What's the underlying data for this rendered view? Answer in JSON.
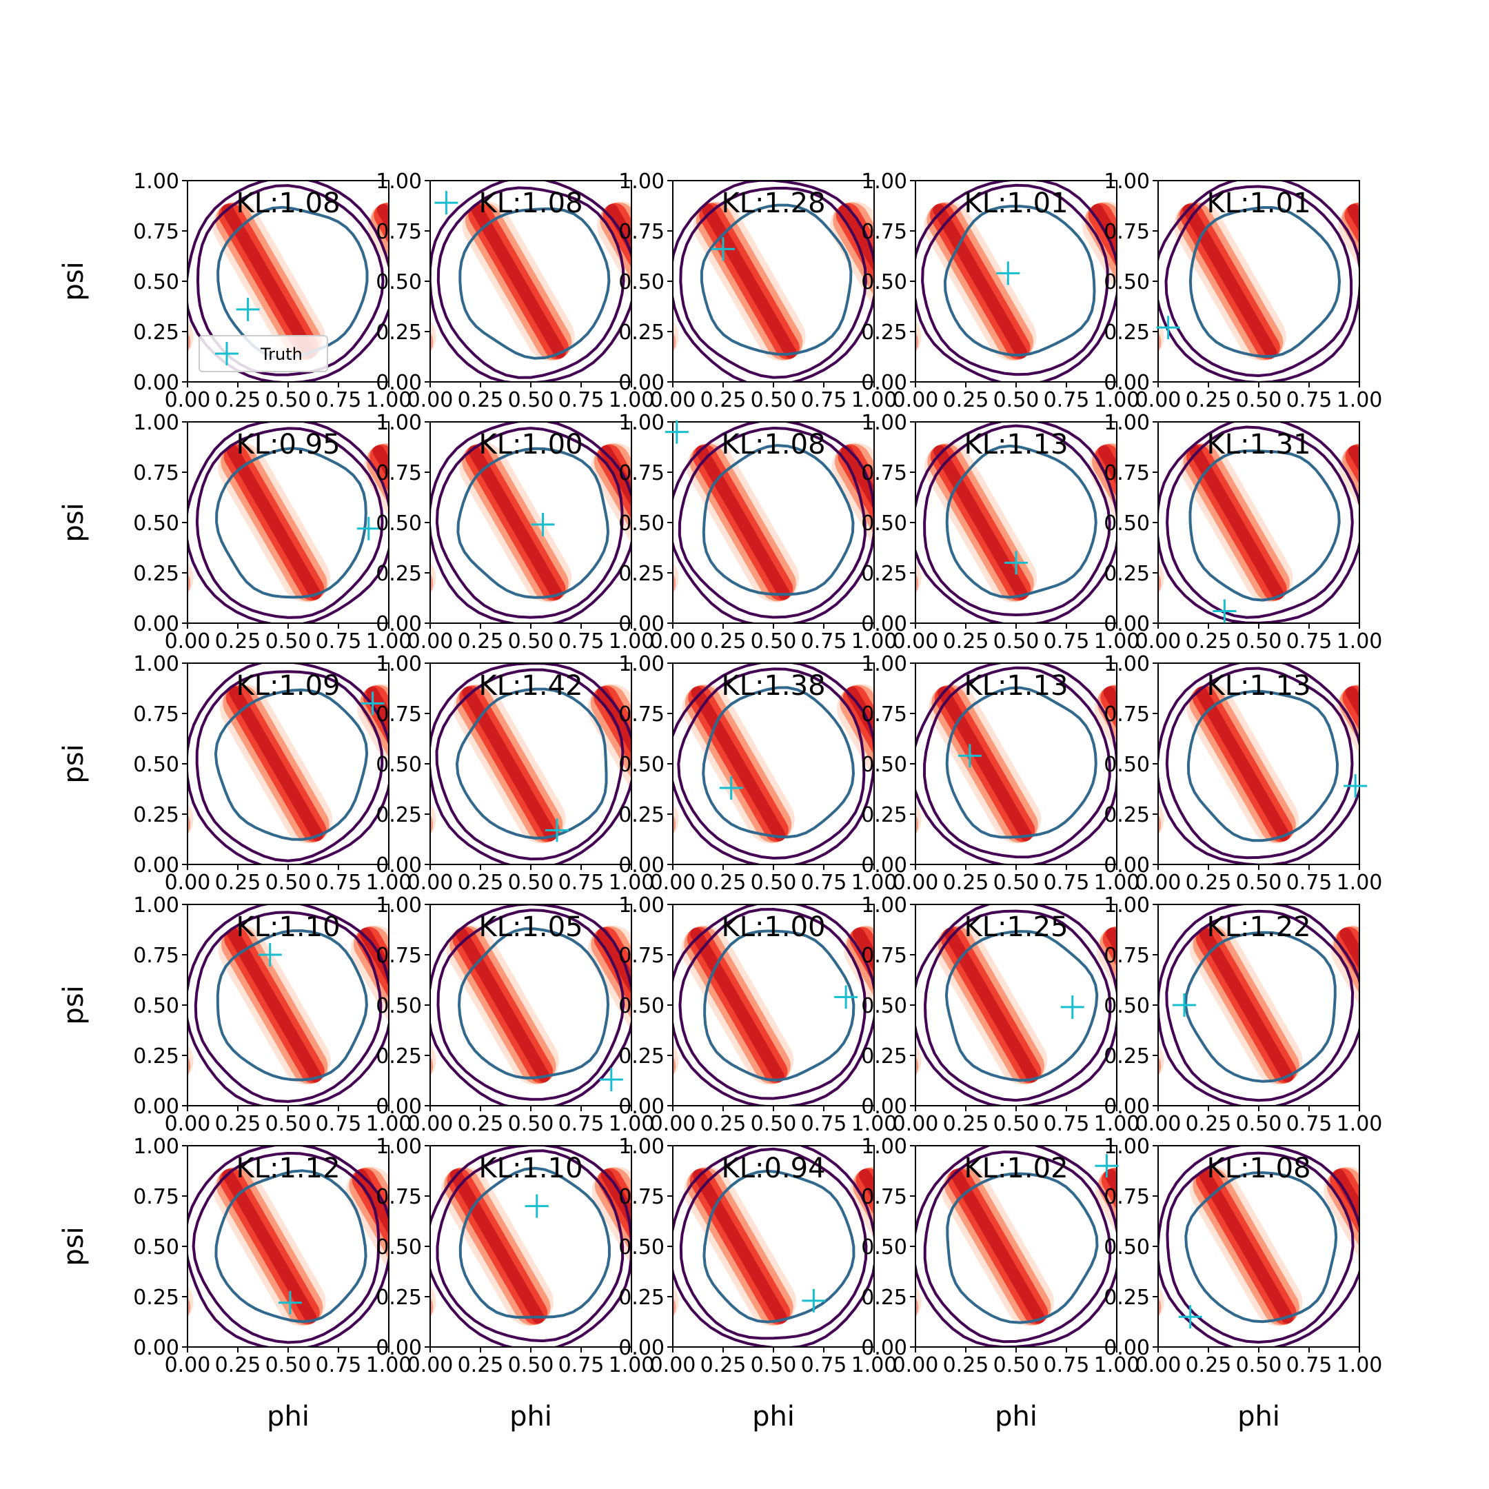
{
  "figure": {
    "grid_rows": 5,
    "grid_cols": 5,
    "legend_label": "Truth"
  },
  "colors": {
    "band_dark": "#cb181d",
    "band_mid": "#ef3b2c",
    "band_light": "#fc9272",
    "band_pale": "#fee0d2",
    "contour_outer": "#440154",
    "contour_inner": "#31688e",
    "truth_marker": "#17becf",
    "axis": "#000000"
  },
  "chart_data": {
    "type": "kde-contour-grid",
    "xlabel": "phi",
    "ylabel": "psi",
    "xlim": [
      0,
      1
    ],
    "ylim": [
      0,
      1
    ],
    "xticks": [
      "0.00",
      "0.25",
      "0.50",
      "0.75",
      "1.00"
    ],
    "yticks": [
      "0.00",
      "0.25",
      "0.50",
      "0.75",
      "1.00"
    ],
    "legend": {
      "entries": [
        "Truth"
      ],
      "placement": "lower-left of first panel"
    },
    "panels": [
      {
        "kl": "KL:1.08",
        "truth": [
          0.3,
          0.36
        ]
      },
      {
        "kl": "KL:1.08",
        "truth": [
          0.08,
          0.89
        ]
      },
      {
        "kl": "KL:1.28",
        "truth": [
          0.25,
          0.66
        ]
      },
      {
        "kl": "KL:1.01",
        "truth": [
          0.46,
          0.54
        ]
      },
      {
        "kl": "KL:1.01",
        "truth": [
          0.05,
          0.27
        ]
      },
      {
        "kl": "KL:0.95",
        "truth": [
          0.9,
          0.47
        ]
      },
      {
        "kl": "KL:1.00",
        "truth": [
          0.56,
          0.49
        ]
      },
      {
        "kl": "KL:1.08",
        "truth": [
          0.02,
          0.95
        ]
      },
      {
        "kl": "KL:1.13",
        "truth": [
          0.5,
          0.3
        ]
      },
      {
        "kl": "KL:1.31",
        "truth": [
          0.33,
          0.06
        ]
      },
      {
        "kl": "KL:1.09",
        "truth": [
          0.92,
          0.8
        ]
      },
      {
        "kl": "KL:1.42",
        "truth": [
          0.63,
          0.17
        ]
      },
      {
        "kl": "KL:1.38",
        "truth": [
          0.29,
          0.38
        ]
      },
      {
        "kl": "KL:1.13",
        "truth": [
          0.27,
          0.54
        ]
      },
      {
        "kl": "KL:1.13",
        "truth": [
          0.98,
          0.39
        ]
      },
      {
        "kl": "KL:1.10",
        "truth": [
          0.41,
          0.75
        ]
      },
      {
        "kl": "KL:1.05",
        "truth": [
          0.9,
          0.13
        ]
      },
      {
        "kl": "KL:1.00",
        "truth": [
          0.86,
          0.54
        ]
      },
      {
        "kl": "KL:1.25",
        "truth": [
          0.78,
          0.49
        ]
      },
      {
        "kl": "KL:1.22",
        "truth": [
          0.13,
          0.5
        ]
      },
      {
        "kl": "KL:1.12",
        "truth": [
          0.51,
          0.22
        ]
      },
      {
        "kl": "KL:1.10",
        "truth": [
          0.53,
          0.7
        ]
      },
      {
        "kl": "KL:0.94",
        "truth": [
          0.7,
          0.23
        ]
      },
      {
        "kl": "KL:1.02",
        "truth": [
          0.95,
          0.9
        ]
      },
      {
        "kl": "KL:1.08",
        "truth": [
          0.16,
          0.15
        ]
      }
    ]
  }
}
